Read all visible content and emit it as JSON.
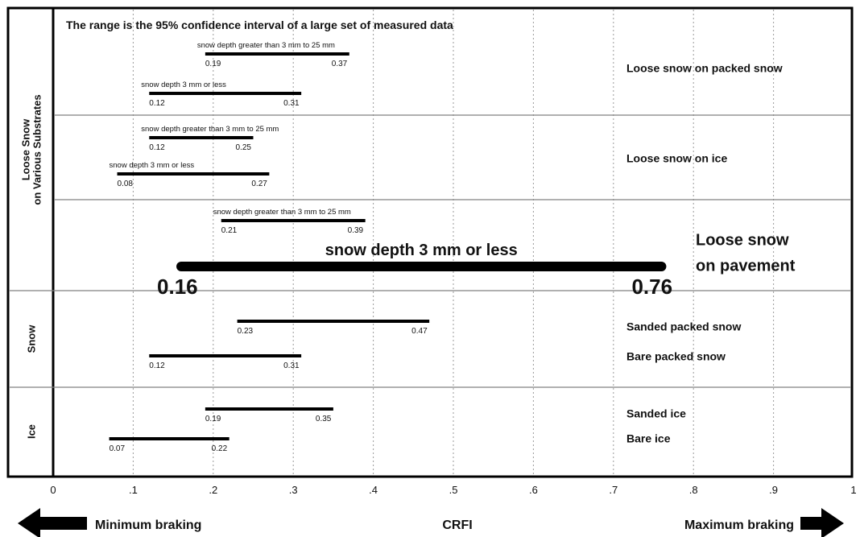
{
  "chart_data": {
    "type": "range",
    "title": "The range is the 95% confidence interval of a large set of measured data",
    "xlabel": "CRFI",
    "xlim": [
      0,
      1
    ],
    "x_ticks": [
      "0",
      ".1",
      ".2",
      ".3",
      ".4",
      ".5",
      ".6",
      ".7",
      ".8",
      ".9",
      "1"
    ],
    "left_arrow_label": "Minimum braking",
    "right_arrow_label": "Maximum braking",
    "groups": [
      {
        "label": "Loose Snow on Various Substrates",
        "label_lines": [
          "Loose Snow",
          "on Various Substrates"
        ]
      },
      {
        "label": "Snow",
        "label_lines": [
          "Snow"
        ]
      },
      {
        "label": "Ice",
        "label_lines": [
          "Ice"
        ]
      }
    ],
    "conditions": [
      {
        "label": "Loose snow on packed snow",
        "label_lines": [
          "Loose snow on packed snow"
        ]
      },
      {
        "label": "Loose snow on ice",
        "label_lines": [
          "Loose snow on ice"
        ]
      },
      {
        "label": "Loose snow on pavement",
        "label_lines": [
          "Loose snow",
          "on pavement"
        ]
      },
      {
        "label": "Sanded packed snow",
        "label_lines": [
          "Sanded packed snow"
        ]
      },
      {
        "label": "Bare packed snow",
        "label_lines": [
          "Bare packed snow"
        ]
      },
      {
        "label": "Sanded ice",
        "label_lines": [
          "Sanded ice"
        ]
      },
      {
        "label": "Bare ice",
        "label_lines": [
          "Bare ice"
        ]
      }
    ],
    "ranges": [
      {
        "condition": "Loose snow on packed snow",
        "desc": "snow depth greater than 3 mm to 25 mm",
        "low": 0.19,
        "high": 0.37,
        "low_label": "0.19",
        "high_label": "0.37"
      },
      {
        "condition": "Loose snow on packed snow",
        "desc": "snow depth 3 mm or less",
        "low": 0.12,
        "high": 0.31,
        "low_label": "0.12",
        "high_label": "0.31"
      },
      {
        "condition": "Loose snow on ice",
        "desc": "snow depth greater than 3 mm to 25 mm",
        "low": 0.12,
        "high": 0.25,
        "low_label": "0.12",
        "high_label": "0.25"
      },
      {
        "condition": "Loose snow on ice",
        "desc": "snow depth 3 mm or less",
        "low": 0.08,
        "high": 0.27,
        "low_label": "0.08",
        "high_label": "0.27"
      },
      {
        "condition": "Loose snow on pavement",
        "desc": "snow depth greater than 3 mm to 25 mm",
        "low": 0.21,
        "high": 0.39,
        "low_label": "0.21",
        "high_label": "0.39"
      },
      {
        "condition": "Loose snow on pavement",
        "desc": "snow depth 3 mm or less",
        "low": 0.16,
        "high": 0.76,
        "low_label": "0.16",
        "high_label": "0.76",
        "emphasized": true
      },
      {
        "condition": "Sanded packed snow",
        "desc": "",
        "low": 0.23,
        "high": 0.47,
        "low_label": "0.23",
        "high_label": "0.47"
      },
      {
        "condition": "Bare packed snow",
        "desc": "",
        "low": 0.12,
        "high": 0.31,
        "low_label": "0.12",
        "high_label": "0.31"
      },
      {
        "condition": "Sanded ice",
        "desc": "",
        "low": 0.19,
        "high": 0.35,
        "low_label": "0.19",
        "high_label": "0.35"
      },
      {
        "condition": "Bare ice",
        "desc": "",
        "low": 0.07,
        "high": 0.22,
        "low_label": "0.07",
        "high_label": "0.22"
      }
    ],
    "colors": {
      "bar": "#000000",
      "divider": "#808080",
      "grid": "#9a9a9a",
      "frame": "#000000"
    }
  }
}
